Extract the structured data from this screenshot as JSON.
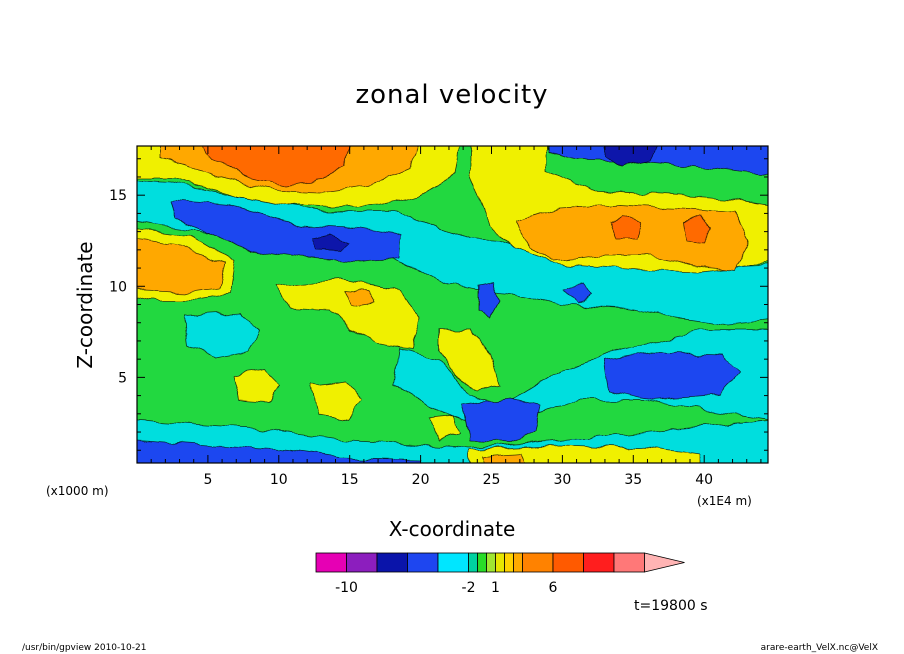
{
  "chart_data": {
    "type": "heatmap",
    "title": "zonal velocity",
    "xlabel": "X-coordinate",
    "ylabel": "Z-coordinate",
    "x_unit": "(x1E4 m)",
    "y_unit": "(x1000 m)",
    "xlim": [
      0,
      44.5
    ],
    "ylim": [
      0.3,
      17.7
    ],
    "x_ticks": [
      "5",
      "10",
      "15",
      "20",
      "25",
      "30",
      "35",
      "40"
    ],
    "y_ticks": [
      "5",
      "10",
      "15"
    ],
    "colorbar": {
      "levels": [
        -12,
        -10,
        -8,
        -6,
        -4,
        -2,
        -1,
        0,
        1,
        2,
        3,
        4,
        6,
        8,
        10,
        12
      ],
      "colors": [
        "#e600b4",
        "#8c1ebe",
        "#0a14aa",
        "#1e46f0",
        "#00e6ff",
        "#00d2a0",
        "#28dc28",
        "#a0e632",
        "#e6e600",
        "#ffd200",
        "#ffaa00",
        "#ff8200",
        "#ff5a00",
        "#ff1e1e",
        "#ff7878",
        "#ffb4b4"
      ],
      "labels": [
        "-10",
        "-2",
        "1",
        "6"
      ],
      "label_levels": [
        -10,
        -2,
        1,
        6
      ]
    },
    "time_label": "t=19800 s"
  },
  "footer": {
    "left": "/usr/bin/gpview   2010-10-21",
    "right": "arare-earth_VelX.nc@VelX"
  },
  "colors": {
    "c_m2": "#00dede",
    "c_0": "#22d840",
    "c_1": "#f0f000",
    "c_3": "#ffa800",
    "c_6": "#ff6a00",
    "c_m4": "#1e46f0",
    "c_m8": "#0a14aa"
  }
}
